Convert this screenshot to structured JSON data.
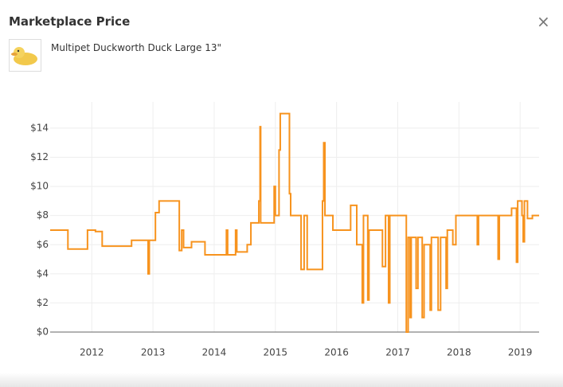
{
  "header": {
    "title": "Marketplace Price",
    "close": "×"
  },
  "product": {
    "name": "Multipet Duckworth Duck Large 13\""
  },
  "chart_data": {
    "type": "line",
    "color": "#f7931e",
    "grid": true,
    "xlim": [
      2011.32,
      2019.31
    ],
    "xticks": [
      2012,
      2013,
      2014,
      2015,
      2016,
      2017,
      2018,
      2019
    ],
    "ylim": [
      0,
      15.8
    ],
    "yticks": [
      {
        "value": 0,
        "label": "$0"
      },
      {
        "value": 2,
        "label": "$2"
      },
      {
        "value": 4,
        "label": "$4"
      },
      {
        "value": 6,
        "label": "$6"
      },
      {
        "value": 8,
        "label": "$8"
      },
      {
        "value": 10,
        "label": "$10"
      },
      {
        "value": 12,
        "label": "$12"
      },
      {
        "value": 14,
        "label": "$14"
      }
    ],
    "x": [
      2011.32,
      2011.61,
      2011.61,
      2011.93,
      2011.93,
      2012.06,
      2012.06,
      2012.17,
      2012.17,
      2012.65,
      2012.65,
      2012.92,
      2012.92,
      2012.94,
      2012.94,
      2013.04,
      2013.04,
      2013.1,
      2013.1,
      2013.43,
      2013.43,
      2013.47,
      2013.47,
      2013.5,
      2013.5,
      2013.63,
      2013.63,
      2013.85,
      2013.85,
      2014.2,
      2014.2,
      2014.22,
      2014.22,
      2014.35,
      2014.35,
      2014.37,
      2014.37,
      2014.54,
      2014.54,
      2014.6,
      2014.6,
      2014.73,
      2014.73,
      2014.75,
      2014.75,
      2014.76,
      2014.76,
      2014.98,
      2014.98,
      2015.0,
      2015.0,
      2015.06,
      2015.06,
      2015.08,
      2015.08,
      2015.23,
      2015.23,
      2015.25,
      2015.25,
      2015.42,
      2015.42,
      2015.47,
      2015.47,
      2015.52,
      2015.52,
      2015.77,
      2015.77,
      2015.79,
      2015.79,
      2015.81,
      2015.81,
      2015.94,
      2015.94,
      2016.23,
      2016.23,
      2016.33,
      2016.33,
      2016.42,
      2016.42,
      2016.44,
      2016.44,
      2016.51,
      2016.51,
      2016.53,
      2016.53,
      2016.75,
      2016.75,
      2016.8,
      2016.8,
      2016.85,
      2016.85,
      2016.87,
      2016.87,
      2017.14,
      2017.14,
      2017.17,
      2017.17,
      2017.2,
      2017.2,
      2017.22,
      2017.22,
      2017.3,
      2017.3,
      2017.33,
      2017.33,
      2017.4,
      2017.4,
      2017.43,
      2017.43,
      2017.53,
      2017.53,
      2017.55,
      2017.55,
      2017.66,
      2017.66,
      2017.7,
      2017.7,
      2017.79,
      2017.79,
      2017.81,
      2017.81,
      2017.9,
      2017.9,
      2017.95,
      2017.95,
      2018.3,
      2018.3,
      2018.32,
      2018.32,
      2018.64,
      2018.64,
      2018.66,
      2018.66,
      2018.86,
      2018.86,
      2018.94,
      2018.94,
      2018.96,
      2018.96,
      2019.03,
      2019.03,
      2019.05,
      2019.05,
      2019.07,
      2019.07,
      2019.12,
      2019.12,
      2019.2,
      2019.2,
      2019.31
    ],
    "values": [
      7.0,
      7.0,
      5.7,
      5.7,
      7.0,
      7.0,
      6.9,
      6.9,
      5.9,
      5.9,
      6.3,
      6.3,
      4.0,
      4.0,
      6.3,
      6.3,
      8.2,
      8.2,
      9.0,
      9.0,
      5.6,
      5.6,
      7.0,
      7.0,
      5.8,
      5.8,
      6.2,
      6.2,
      5.3,
      5.3,
      7.0,
      7.0,
      5.3,
      5.3,
      7.0,
      7.0,
      5.5,
      5.5,
      6.0,
      6.0,
      7.5,
      7.5,
      9.0,
      9.0,
      14.1,
      14.1,
      7.5,
      7.5,
      10.0,
      10.0,
      8.0,
      8.0,
      12.5,
      12.5,
      15.0,
      15.0,
      9.5,
      9.5,
      8.0,
      8.0,
      4.3,
      4.3,
      8.0,
      8.0,
      4.3,
      4.3,
      9.0,
      9.0,
      13.0,
      13.0,
      8.0,
      8.0,
      7.0,
      7.0,
      8.7,
      8.7,
      6.0,
      6.0,
      2.0,
      2.0,
      8.0,
      8.0,
      2.2,
      2.2,
      7.0,
      7.0,
      4.5,
      4.5,
      8.0,
      8.0,
      2.0,
      2.0,
      8.0,
      8.0,
      0,
      0,
      6.5,
      6.5,
      1.0,
      1.0,
      6.5,
      6.5,
      3.0,
      3.0,
      6.5,
      6.5,
      1.0,
      1.0,
      6.0,
      6.0,
      1.5,
      1.5,
      6.5,
      6.5,
      1.5,
      1.5,
      6.5,
      6.5,
      3.0,
      3.0,
      7.0,
      7.0,
      6.0,
      6.0,
      8.0,
      8.0,
      6.0,
      6.0,
      8.0,
      8.0,
      5.0,
      5.0,
      8.0,
      8.0,
      8.5,
      8.5,
      4.8,
      4.8,
      9.0,
      9.0,
      8.0,
      8.0,
      6.2,
      6.2,
      9.0,
      9.0,
      7.8,
      7.8,
      8.0,
      8.0
    ]
  }
}
